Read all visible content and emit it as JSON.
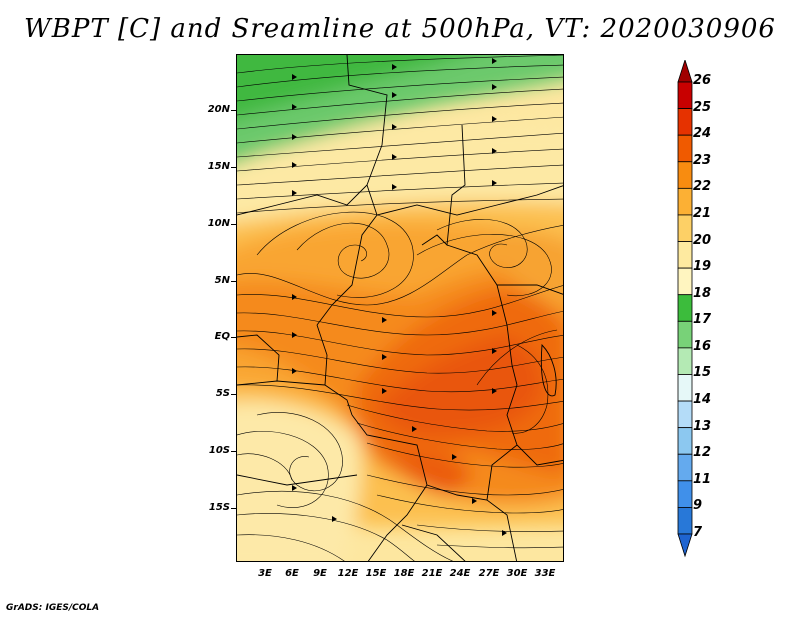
{
  "title": "WBPT [C] and Sreamline at 500hPa, VT: 2020030906",
  "footer": "GrADS: IGES/COLA",
  "map": {
    "variable": "WBPT [C]",
    "level": "500hPa",
    "valid_time": "2020030906",
    "lat_labels": [
      "20N",
      "15N",
      "10N",
      "5N",
      "EQ",
      "5S",
      "10S",
      "15S"
    ],
    "lon_labels": [
      "3E",
      "6E",
      "9E",
      "12E",
      "15E",
      "18E",
      "21E",
      "24E",
      "27E",
      "30E",
      "33E"
    ]
  },
  "colorbar": {
    "labels": [
      "26",
      "25",
      "24",
      "23",
      "22",
      "21",
      "20",
      "19",
      "18",
      "17",
      "16",
      "15",
      "14",
      "13",
      "12",
      "11",
      "9",
      "7"
    ],
    "colors": [
      "#a00000",
      "#c80000",
      "#e63200",
      "#f05a00",
      "#f88c10",
      "#fcb034",
      "#fdd066",
      "#feeaa0",
      "#fff5c0",
      "#3cbc3c",
      "#78d278",
      "#b4eab4",
      "#e6f8f8",
      "#b4dcf8",
      "#8cc8f0",
      "#64aaee",
      "#4090ea",
      "#2878d8",
      "#1e64d0"
    ]
  }
}
